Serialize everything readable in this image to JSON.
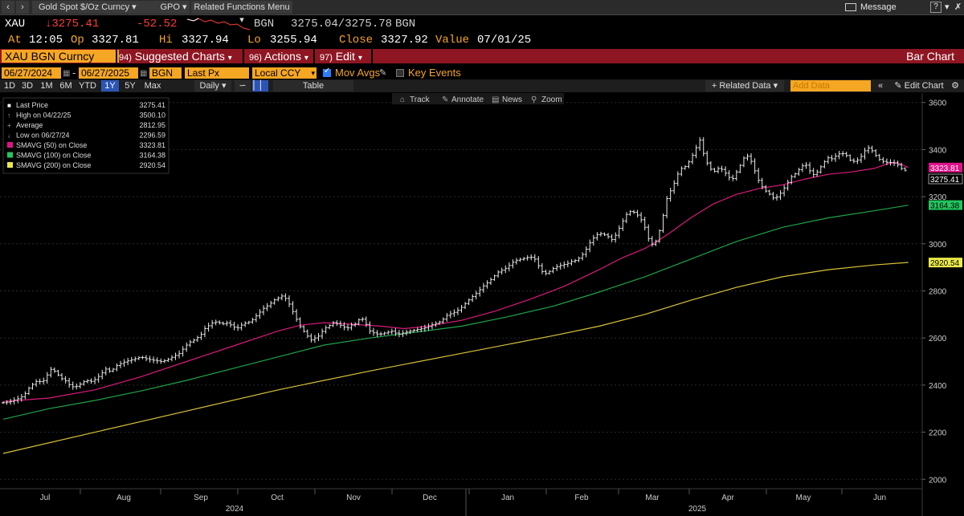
{
  "toolbar": {
    "security_name": "Gold Spot $/Oz Curncy",
    "ticker_short": "GPO",
    "related_menu": "Related Functions Menu",
    "message": "Message",
    "help": "?"
  },
  "quote": {
    "ticker": "XAU",
    "last": "3275.41",
    "change": "-52.52",
    "source": "BGN",
    "bid_ask": "3275.04/3275.78",
    "source2": "BGN",
    "at_label": "At",
    "time": "12:05",
    "open_label": "Op",
    "open": "3327.81",
    "high_label": "Hi",
    "high": "3327.94",
    "low_label": "Lo",
    "low": "3255.94",
    "close_label": "Close",
    "close": "3327.92",
    "value_label": "Value",
    "value_date": "07/01/25"
  },
  "redbar": {
    "ticker_field": "XAU BGN Curncy",
    "suggested_num": "94)",
    "suggested": "Suggested Charts",
    "actions_num": "96)",
    "actions": "Actions",
    "edit_num": "97)",
    "edit": "Edit",
    "chart_type": "Bar Chart"
  },
  "controls": {
    "start_date": "06/27/2024",
    "dash": "-",
    "end_date": "06/27/2025",
    "source": "BGN",
    "field": "Last Px",
    "currency": "Local CCY",
    "mov_avgs": "Mov Avgs",
    "key_events": "Key Events"
  },
  "periods": {
    "buttons": [
      "1D",
      "3D",
      "1M",
      "6M",
      "YTD",
      "1Y",
      "5Y",
      "Max"
    ],
    "active": "1Y",
    "frequency": "Daily",
    "table": "Table",
    "related_data": "+ Related Data",
    "add_data": "Add Data",
    "edit_chart": "Edit Chart"
  },
  "chart_tools": {
    "track": "Track",
    "annotate": "Annotate",
    "news": "News",
    "zoom": "Zoom"
  },
  "legend": [
    {
      "label": "Last Price",
      "value": "3275.41",
      "color": "#ffffff"
    },
    {
      "label": "High on 04/22/25",
      "value": "3500.10",
      "color": "#cccccc"
    },
    {
      "label": "Average",
      "value": "2812.95",
      "color": "#cccccc"
    },
    {
      "label": "Low on 06/27/24",
      "value": "2296.59",
      "color": "#cccccc"
    },
    {
      "label": "SMAVG (50)  on Close",
      "value": "3323.81",
      "color": "#e0128a"
    },
    {
      "label": "SMAVG (100)  on Close",
      "value": "3164.38",
      "color": "#22c55e"
    },
    {
      "label": "SMAVG (200)  on Close",
      "value": "2920.54",
      "color": "#e9e94a"
    }
  ],
  "chart_data": {
    "type": "line",
    "ylim": [
      1960,
      3640
    ],
    "yticks": [
      "2000",
      "2200",
      "2400",
      "2600",
      "2800",
      "3000",
      "3200",
      "3400",
      "3600"
    ],
    "xlabels": [
      "Jul",
      "Aug",
      "Sep",
      "Oct",
      "Nov",
      "Dec",
      "Jan",
      "Feb",
      "Mar",
      "Apr",
      "May",
      "Jun"
    ],
    "year_labels": [
      "2024",
      "2025"
    ],
    "grid": true,
    "price": [
      [
        0,
        2325
      ],
      [
        3,
        2330
      ],
      [
        6,
        2340
      ],
      [
        9,
        2355
      ],
      [
        11,
        2385
      ],
      [
        13,
        2405
      ],
      [
        15,
        2420
      ],
      [
        17,
        2410
      ],
      [
        19,
        2440
      ],
      [
        21,
        2470
      ],
      [
        23,
        2455
      ],
      [
        25,
        2430
      ],
      [
        27,
        2420
      ],
      [
        29,
        2400
      ],
      [
        31,
        2390
      ],
      [
        33,
        2400
      ],
      [
        36,
        2420
      ],
      [
        39,
        2415
      ],
      [
        42,
        2440
      ],
      [
        45,
        2470
      ],
      [
        47,
        2455
      ],
      [
        49,
        2480
      ],
      [
        52,
        2495
      ],
      [
        55,
        2505
      ],
      [
        57,
        2510
      ],
      [
        60,
        2520
      ],
      [
        63,
        2510
      ],
      [
        66,
        2505
      ],
      [
        69,
        2500
      ],
      [
        71,
        2505
      ],
      [
        74,
        2520
      ],
      [
        77,
        2535
      ],
      [
        79,
        2560
      ],
      [
        81,
        2580
      ],
      [
        83,
        2590
      ],
      [
        86,
        2610
      ],
      [
        88,
        2640
      ],
      [
        90,
        2655
      ],
      [
        92,
        2670
      ],
      [
        94,
        2665
      ],
      [
        96,
        2660
      ],
      [
        98,
        2665
      ],
      [
        100,
        2650
      ],
      [
        102,
        2640
      ],
      [
        104,
        2655
      ],
      [
        106,
        2665
      ],
      [
        108,
        2670
      ],
      [
        110,
        2690
      ],
      [
        112,
        2710
      ],
      [
        114,
        2730
      ],
      [
        116,
        2740
      ],
      [
        118,
        2760
      ],
      [
        120,
        2770
      ],
      [
        122,
        2780
      ],
      [
        124,
        2760
      ],
      [
        126,
        2720
      ],
      [
        128,
        2680
      ],
      [
        130,
        2640
      ],
      [
        132,
        2620
      ],
      [
        134,
        2590
      ],
      [
        136,
        2600
      ],
      [
        138,
        2610
      ],
      [
        140,
        2640
      ],
      [
        142,
        2650
      ],
      [
        144,
        2665
      ],
      [
        146,
        2660
      ],
      [
        148,
        2650
      ],
      [
        150,
        2640
      ],
      [
        152,
        2655
      ],
      [
        154,
        2660
      ],
      [
        156,
        2690
      ],
      [
        158,
        2665
      ],
      [
        160,
        2630
      ],
      [
        162,
        2620
      ],
      [
        164,
        2615
      ],
      [
        166,
        2620
      ],
      [
        168,
        2625
      ],
      [
        170,
        2630
      ],
      [
        172,
        2615
      ],
      [
        174,
        2620
      ],
      [
        176,
        2625
      ],
      [
        178,
        2630
      ],
      [
        180,
        2635
      ],
      [
        183,
        2640
      ],
      [
        186,
        2650
      ],
      [
        188,
        2660
      ],
      [
        190,
        2665
      ],
      [
        192,
        2680
      ],
      [
        194,
        2700
      ],
      [
        196,
        2705
      ],
      [
        198,
        2715
      ],
      [
        200,
        2730
      ],
      [
        202,
        2750
      ],
      [
        204,
        2770
      ],
      [
        206,
        2785
      ],
      [
        208,
        2805
      ],
      [
        210,
        2825
      ],
      [
        212,
        2840
      ],
      [
        214,
        2860
      ],
      [
        216,
        2880
      ],
      [
        218,
        2890
      ],
      [
        220,
        2900
      ],
      [
        222,
        2920
      ],
      [
        224,
        2930
      ],
      [
        226,
        2935
      ],
      [
        228,
        2940
      ],
      [
        230,
        2945
      ],
      [
        232,
        2935
      ],
      [
        234,
        2900
      ],
      [
        236,
        2870
      ],
      [
        238,
        2880
      ],
      [
        240,
        2895
      ],
      [
        242,
        2905
      ],
      [
        244,
        2910
      ],
      [
        246,
        2915
      ],
      [
        248,
        2925
      ],
      [
        250,
        2930
      ],
      [
        252,
        2945
      ],
      [
        254,
        2970
      ],
      [
        256,
        3005
      ],
      [
        258,
        3030
      ],
      [
        260,
        3045
      ],
      [
        262,
        3040
      ],
      [
        264,
        3030
      ],
      [
        266,
        3015
      ],
      [
        268,
        3050
      ],
      [
        270,
        3090
      ],
      [
        272,
        3125
      ],
      [
        274,
        3140
      ],
      [
        276,
        3130
      ],
      [
        278,
        3110
      ],
      [
        280,
        3070
      ],
      [
        282,
        3010
      ],
      [
        284,
        2990
      ],
      [
        286,
        3040
      ],
      [
        288,
        3120
      ],
      [
        290,
        3210
      ],
      [
        292,
        3235
      ],
      [
        294,
        3290
      ],
      [
        296,
        3320
      ],
      [
        298,
        3330
      ],
      [
        300,
        3360
      ],
      [
        302,
        3400
      ],
      [
        304,
        3440
      ],
      [
        306,
        3370
      ],
      [
        308,
        3325
      ],
      [
        310,
        3305
      ],
      [
        312,
        3320
      ],
      [
        314,
        3315
      ],
      [
        316,
        3290
      ],
      [
        318,
        3270
      ],
      [
        320,
        3305
      ],
      [
        322,
        3340
      ],
      [
        324,
        3380
      ],
      [
        326,
        3360
      ],
      [
        328,
        3310
      ],
      [
        330,
        3260
      ],
      [
        332,
        3230
      ],
      [
        334,
        3215
      ],
      [
        336,
        3195
      ],
      [
        338,
        3200
      ],
      [
        340,
        3225
      ],
      [
        342,
        3255
      ],
      [
        344,
        3285
      ],
      [
        346,
        3300
      ],
      [
        348,
        3325
      ],
      [
        350,
        3340
      ],
      [
        352,
        3310
      ],
      [
        354,
        3290
      ],
      [
        356,
        3315
      ],
      [
        358,
        3345
      ],
      [
        360,
        3365
      ],
      [
        362,
        3360
      ],
      [
        364,
        3380
      ],
      [
        366,
        3385
      ],
      [
        368,
        3375
      ],
      [
        370,
        3350
      ],
      [
        372,
        3350
      ],
      [
        374,
        3365
      ],
      [
        376,
        3395
      ],
      [
        378,
        3410
      ],
      [
        380,
        3385
      ],
      [
        382,
        3360
      ],
      [
        384,
        3350
      ],
      [
        386,
        3345
      ],
      [
        388,
        3345
      ],
      [
        390,
        3340
      ],
      [
        392,
        3320
      ],
      [
        394,
        3310
      ],
      [
        395,
        3275
      ]
    ],
    "ma50": [
      [
        0,
        2330
      ],
      [
        20,
        2345
      ],
      [
        40,
        2380
      ],
      [
        60,
        2435
      ],
      [
        80,
        2500
      ],
      [
        100,
        2565
      ],
      [
        120,
        2630
      ],
      [
        130,
        2655
      ],
      [
        140,
        2665
      ],
      [
        150,
        2660
      ],
      [
        165,
        2650
      ],
      [
        175,
        2640
      ],
      [
        185,
        2650
      ],
      [
        200,
        2675
      ],
      [
        215,
        2715
      ],
      [
        230,
        2765
      ],
      [
        245,
        2820
      ],
      [
        260,
        2890
      ],
      [
        270,
        2940
      ],
      [
        280,
        2980
      ],
      [
        290,
        3040
      ],
      [
        300,
        3110
      ],
      [
        310,
        3170
      ],
      [
        320,
        3210
      ],
      [
        330,
        3235
      ],
      [
        340,
        3250
      ],
      [
        350,
        3275
      ],
      [
        360,
        3295
      ],
      [
        370,
        3305
      ],
      [
        380,
        3320
      ],
      [
        386,
        3340
      ],
      [
        390,
        3345
      ],
      [
        395,
        3324
      ]
    ],
    "ma100": [
      [
        0,
        2255
      ],
      [
        20,
        2300
      ],
      [
        40,
        2335
      ],
      [
        60,
        2375
      ],
      [
        80,
        2420
      ],
      [
        100,
        2470
      ],
      [
        120,
        2520
      ],
      [
        140,
        2570
      ],
      [
        160,
        2600
      ],
      [
        180,
        2625
      ],
      [
        200,
        2650
      ],
      [
        220,
        2690
      ],
      [
        240,
        2735
      ],
      [
        260,
        2795
      ],
      [
        280,
        2860
      ],
      [
        300,
        2935
      ],
      [
        320,
        3010
      ],
      [
        340,
        3070
      ],
      [
        360,
        3110
      ],
      [
        380,
        3140
      ],
      [
        395,
        3164
      ]
    ],
    "ma200": [
      [
        0,
        2110
      ],
      [
        40,
        2200
      ],
      [
        80,
        2290
      ],
      [
        120,
        2380
      ],
      [
        160,
        2460
      ],
      [
        200,
        2535
      ],
      [
        240,
        2610
      ],
      [
        260,
        2650
      ],
      [
        280,
        2700
      ],
      [
        300,
        2760
      ],
      [
        320,
        2815
      ],
      [
        340,
        2860
      ],
      [
        360,
        2890
      ],
      [
        380,
        2910
      ],
      [
        395,
        2921
      ]
    ]
  }
}
